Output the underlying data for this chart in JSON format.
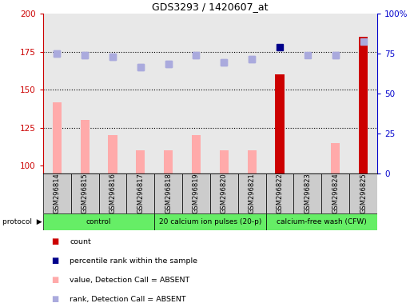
{
  "title": "GDS3293 / 1420607_at",
  "samples": [
    "GSM296814",
    "GSM296815",
    "GSM296816",
    "GSM296817",
    "GSM296818",
    "GSM296819",
    "GSM296820",
    "GSM296821",
    "GSM296822",
    "GSM296823",
    "GSM296824",
    "GSM296825"
  ],
  "count_values": [
    null,
    null,
    null,
    null,
    null,
    null,
    null,
    null,
    160,
    null,
    null,
    185
  ],
  "value_absent": [
    142,
    130,
    120,
    110,
    110,
    120,
    110,
    110,
    null,
    null,
    115,
    null
  ],
  "percentile_values": [
    174,
    173,
    172,
    165,
    167,
    173,
    168,
    170,
    178,
    173,
    173,
    182
  ],
  "percentile_is_dark": [
    false,
    false,
    false,
    false,
    false,
    false,
    false,
    false,
    true,
    false,
    false,
    false
  ],
  "rank_absent": [
    174,
    173,
    172,
    165,
    167,
    173,
    168,
    170,
    null,
    null,
    173,
    null
  ],
  "ylim_left": [
    95,
    200
  ],
  "ylim_right": [
    0,
    100
  ],
  "yticks_left": [
    100,
    125,
    150,
    175,
    200
  ],
  "yticks_right": [
    0,
    25,
    50,
    75,
    100
  ],
  "left_color": "#cc0000",
  "right_color": "#0000cc",
  "absent_bar_color": "#ffaaaa",
  "count_bar_color": "#cc0000",
  "dark_square_color": "#00008b",
  "light_square_color": "#aaaadd",
  "background_color": "#ffffff",
  "protocol_groups": [
    {
      "label": "control",
      "start": 0,
      "end": 4
    },
    {
      "label": "20 calcium ion pulses (20-p)",
      "start": 4,
      "end": 8
    },
    {
      "label": "calcium-free wash (CFW)",
      "start": 8,
      "end": 12
    }
  ],
  "protocol_color": "#66ee66",
  "legend_items": [
    {
      "color": "#cc0000",
      "label": "count"
    },
    {
      "color": "#00008b",
      "label": "percentile rank within the sample"
    },
    {
      "color": "#ffaaaa",
      "label": "value, Detection Call = ABSENT"
    },
    {
      "color": "#aaaadd",
      "label": "rank, Detection Call = ABSENT"
    }
  ]
}
